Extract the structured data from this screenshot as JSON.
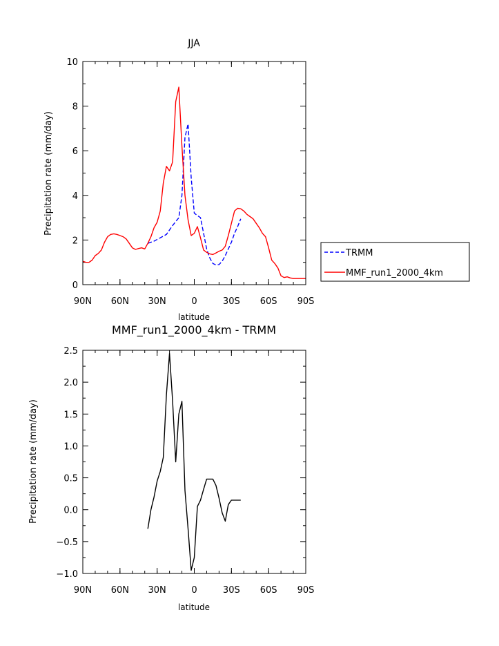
{
  "chart_data": [
    {
      "type": "line",
      "title": "JJA",
      "xlabel": "latitude",
      "ylabel": "Precipitation rate (mm/day)",
      "xlim": [
        90,
        -90
      ],
      "ylim": [
        0,
        10
      ],
      "x_ticks": [
        90,
        60,
        30,
        0,
        -30,
        -60,
        -90
      ],
      "x_tick_labels": [
        "90N",
        "60N",
        "30N",
        "0",
        "30S",
        "60S",
        "90S"
      ],
      "y_ticks": [
        0,
        2,
        4,
        6,
        8,
        10
      ],
      "y_tick_labels": [
        "0",
        "2",
        "4",
        "6",
        "8",
        "10"
      ],
      "legend": {
        "position": "right",
        "entries": [
          "TRMM",
          "MMF_run1_2000_4km"
        ]
      },
      "series": [
        {
          "name": "TRMM",
          "color": "#0000ff",
          "dash": "dashed",
          "x": [
            37.5,
            32.5,
            27.5,
            22.5,
            17.5,
            12.5,
            10,
            7.5,
            5,
            2.5,
            0,
            -2.5,
            -5,
            -7.5,
            -10,
            -12.5,
            -15,
            -17.5,
            -20,
            -22.5,
            -25,
            -27.5,
            -30,
            -32.5,
            -35,
            -37.5
          ],
          "y": [
            1.85,
            1.95,
            2.1,
            2.25,
            2.65,
            3.0,
            4.0,
            6.6,
            7.2,
            4.8,
            3.2,
            3.1,
            3.0,
            2.3,
            1.6,
            1.2,
            0.95,
            0.88,
            0.9,
            1.05,
            1.3,
            1.6,
            1.9,
            2.3,
            2.6,
            2.95
          ]
        },
        {
          "name": "MMF_run1_2000_4km",
          "color": "#ff0000",
          "dash": "solid",
          "x": [
            90,
            87.5,
            85,
            82.5,
            80,
            77.5,
            75,
            72.5,
            70,
            67.5,
            65,
            62.5,
            60,
            57.5,
            55,
            52.5,
            50,
            47.5,
            45,
            42.5,
            40,
            37.5,
            35,
            32.5,
            30,
            27.5,
            25,
            22.5,
            20,
            17.5,
            15,
            12.5,
            10,
            7.5,
            5,
            2.5,
            0,
            -2.5,
            -5,
            -7.5,
            -10,
            -12.5,
            -15,
            -17.5,
            -20,
            -22.5,
            -25,
            -27.5,
            -30,
            -32.5,
            -35,
            -37.5,
            -40,
            -42.5,
            -45,
            -47.5,
            -50,
            -52.5,
            -55,
            -57.5,
            -60,
            -62.5,
            -65,
            -67.5,
            -70,
            -72.5,
            -75,
            -77.5,
            -80,
            -82.5,
            -85,
            -87.5,
            -90
          ],
          "y": [
            1.05,
            1.0,
            1.0,
            1.1,
            1.3,
            1.4,
            1.55,
            1.9,
            2.15,
            2.25,
            2.28,
            2.25,
            2.2,
            2.15,
            2.05,
            1.85,
            1.65,
            1.58,
            1.62,
            1.65,
            1.6,
            1.85,
            2.15,
            2.55,
            2.8,
            3.3,
            4.55,
            5.3,
            5.1,
            5.5,
            8.2,
            8.85,
            6.2,
            4.0,
            2.9,
            2.2,
            2.3,
            2.6,
            2.1,
            1.55,
            1.45,
            1.38,
            1.35,
            1.42,
            1.5,
            1.55,
            1.72,
            2.2,
            2.75,
            3.3,
            3.42,
            3.4,
            3.3,
            3.15,
            3.05,
            2.95,
            2.75,
            2.55,
            2.3,
            2.15,
            1.65,
            1.1,
            0.95,
            0.75,
            0.4,
            0.32,
            0.35,
            0.3,
            0.28,
            0.28,
            0.28,
            0.28,
            0.28
          ]
        }
      ]
    },
    {
      "type": "line",
      "title": "MMF_run1_2000_4km - TRMM",
      "xlabel": "latitude",
      "ylabel": "Precipitation rate (mm/day)",
      "xlim": [
        90,
        -90
      ],
      "ylim": [
        -1.0,
        2.5
      ],
      "x_ticks": [
        90,
        60,
        30,
        0,
        -30,
        -60,
        -90
      ],
      "x_tick_labels": [
        "90N",
        "60N",
        "30N",
        "0",
        "30S",
        "60S",
        "90S"
      ],
      "y_ticks": [
        -1.0,
        -0.5,
        0.0,
        0.5,
        1.0,
        1.5,
        2.0,
        2.5
      ],
      "y_tick_labels": [
        "-1.0",
        "-0.5",
        "0.0",
        "0.5",
        "1.0",
        "1.5",
        "2.0",
        "2.5"
      ],
      "series": [
        {
          "name": "MMF_run1_2000_4km - TRMM",
          "color": "#000000",
          "dash": "solid",
          "x": [
            37.5,
            35,
            32.5,
            30,
            27.5,
            25,
            22.5,
            20,
            17.5,
            15,
            12.5,
            10,
            7.5,
            5,
            2.5,
            0,
            -2.5,
            -5,
            -7.5,
            -10,
            -12.5,
            -15,
            -17.5,
            -20,
            -22.5,
            -25,
            -27.5,
            -30,
            -32.5,
            -35,
            -37.5
          ],
          "y": [
            -0.3,
            0.0,
            0.2,
            0.45,
            0.6,
            0.82,
            1.8,
            2.45,
            1.7,
            0.75,
            1.5,
            1.7,
            0.3,
            -0.3,
            -0.95,
            -0.75,
            0.05,
            0.15,
            0.32,
            0.48,
            0.48,
            0.48,
            0.38,
            0.18,
            -0.05,
            -0.18,
            0.08,
            0.15,
            0.15,
            0.15,
            0.15
          ]
        }
      ]
    }
  ]
}
